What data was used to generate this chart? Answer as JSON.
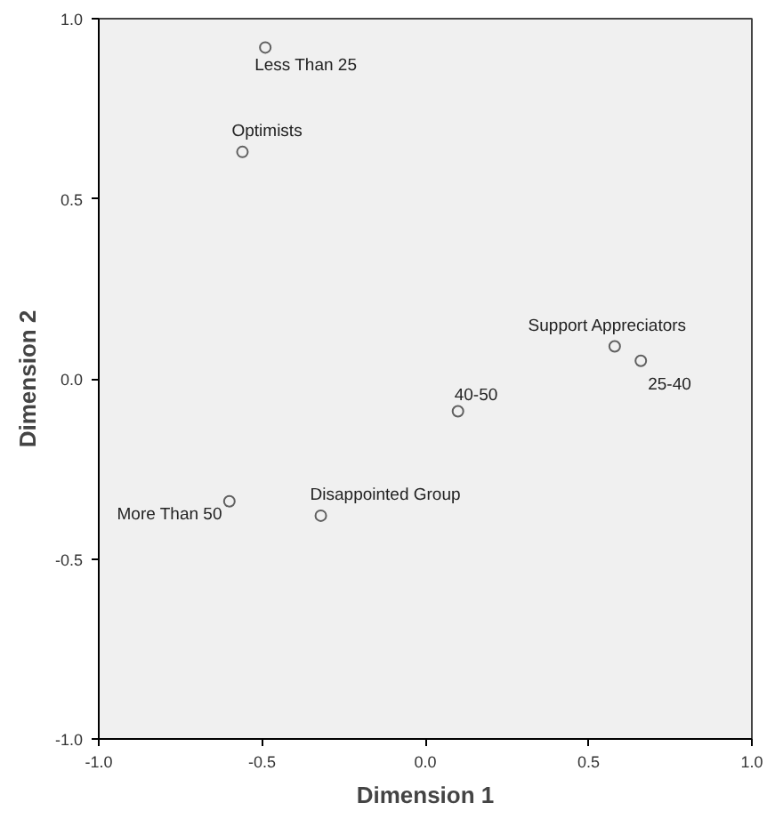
{
  "chart_data": {
    "type": "scatter",
    "xlabel": "Dimension 1",
    "ylabel": "Dimension 2",
    "series": [
      {
        "color": "#606060",
        "x": [
          -0.49,
          -0.56,
          0.58,
          0.66,
          0.1,
          -0.6,
          -0.32
        ],
        "values": [
          0.92,
          0.63,
          0.09,
          0.05,
          -0.09,
          -0.34,
          -0.38
        ]
      }
    ],
    "annotations": [
      {
        "text": "Less Than 25",
        "x": -0.49,
        "y": 0.92
      },
      {
        "text": "Optimists",
        "x": -0.56,
        "y": 0.63
      },
      {
        "text": "Support Appreciators",
        "x": 0.58,
        "y": 0.09
      },
      {
        "text": "25-40",
        "x": 0.66,
        "y": 0.05
      },
      {
        "text": "40-50",
        "x": 0.1,
        "y": -0.09
      },
      {
        "text": "More Than 50",
        "x": -0.6,
        "y": -0.34
      },
      {
        "text": "Disappointed Group",
        "x": -0.32,
        "y": -0.38
      }
    ],
    "xlim": [
      -1.0,
      1.0
    ],
    "ylim": [
      -1.0,
      1.0
    ],
    "xticks": [
      {
        "value": -1,
        "label": "-1.0"
      },
      {
        "value": -0.5,
        "label": "-0.5"
      },
      {
        "value": 0,
        "label": "0.0"
      },
      {
        "value": 0.5,
        "label": "0.5"
      },
      {
        "value": 1,
        "label": "1.0"
      }
    ],
    "yticks": [
      {
        "value": -1,
        "label": "-1.0"
      },
      {
        "value": -0.5,
        "label": "-0.5"
      },
      {
        "value": 0,
        "label": "0.0"
      },
      {
        "value": 0.5,
        "label": "0.5"
      },
      {
        "value": 1,
        "label": "1.0"
      }
    ],
    "marker": "circle",
    "grid": false
  }
}
